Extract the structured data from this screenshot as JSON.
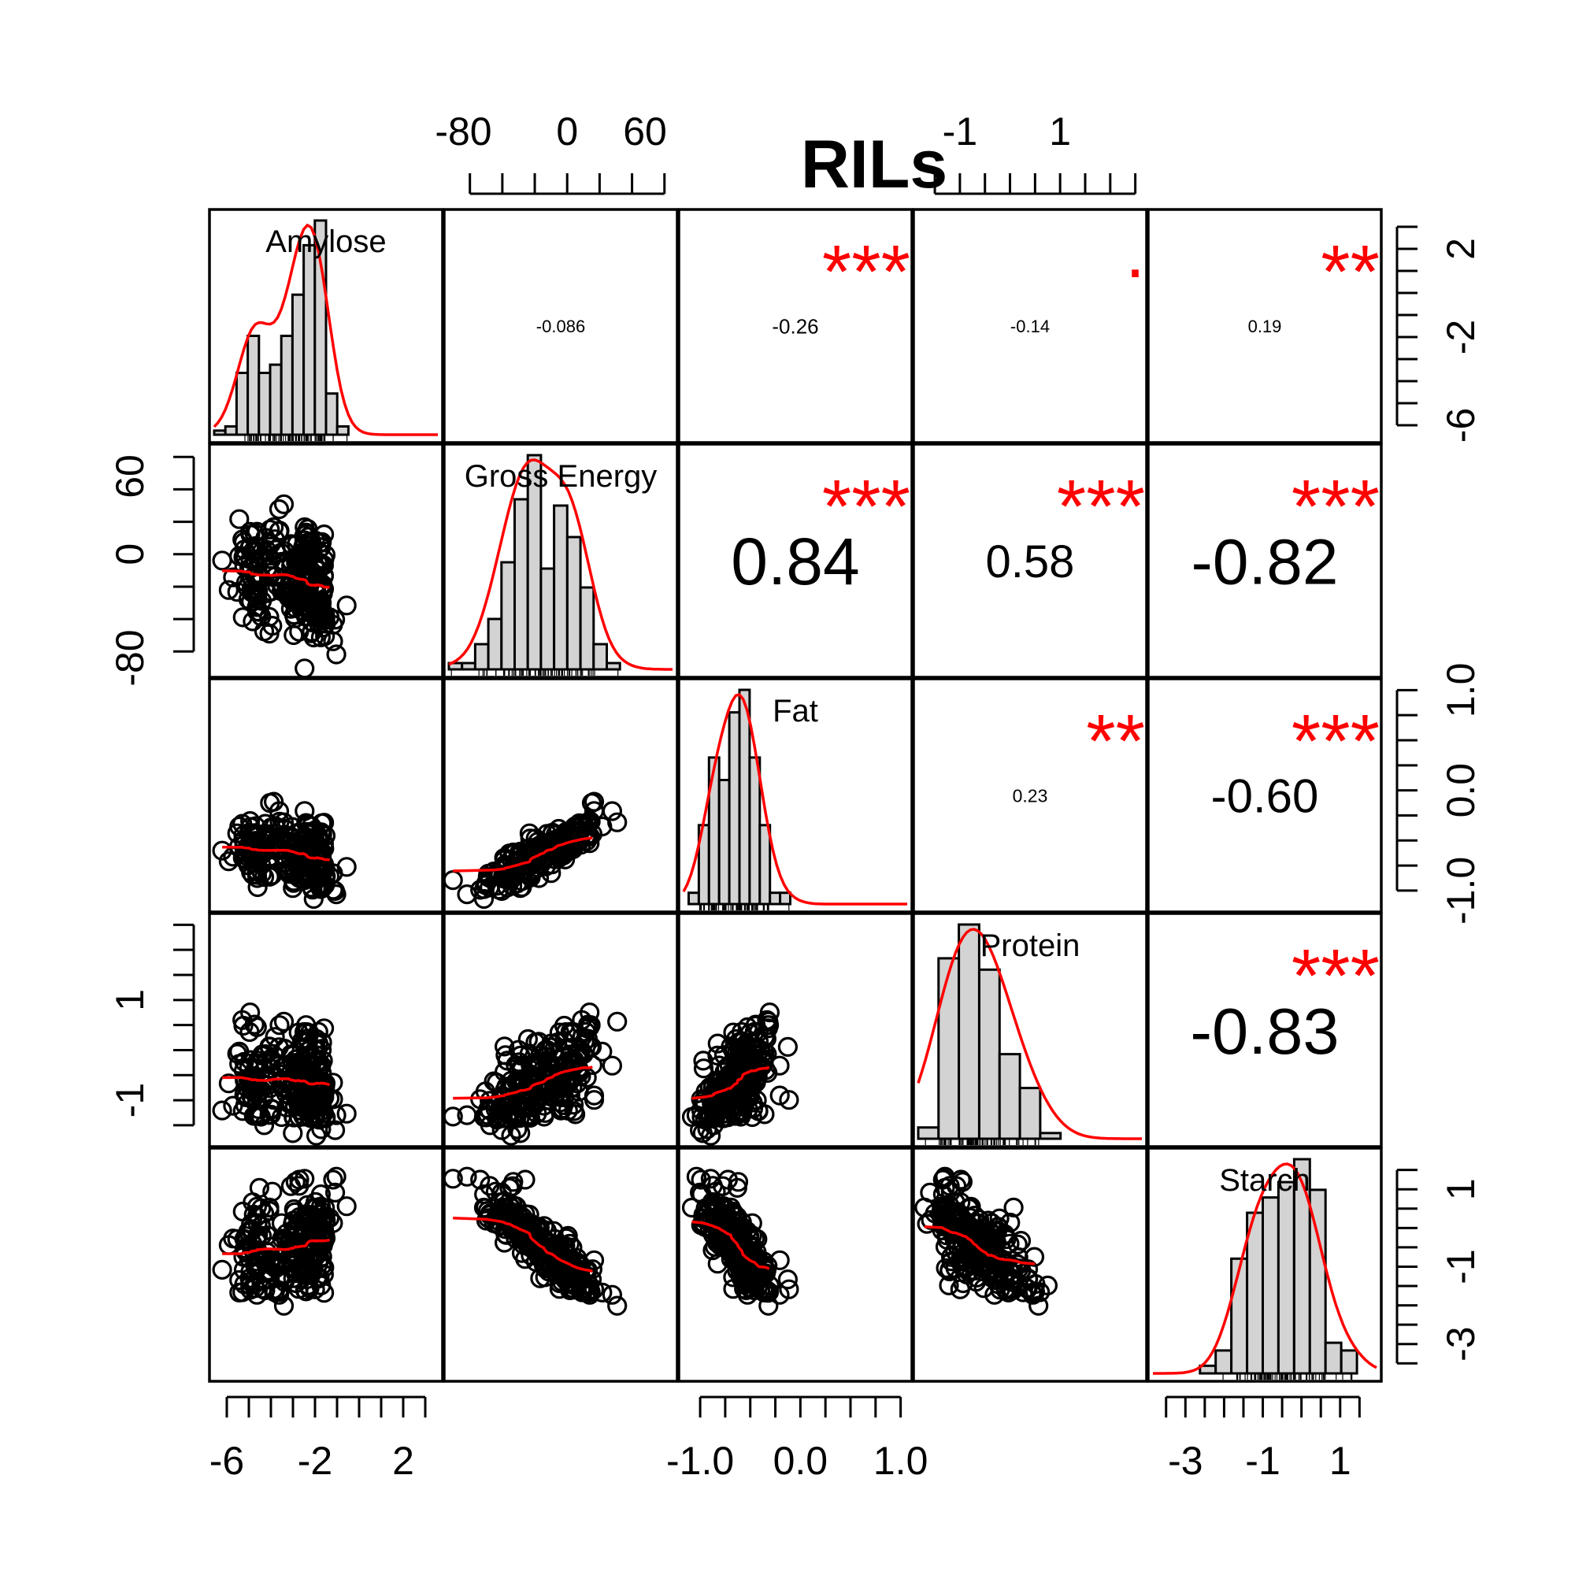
{
  "chart_data": {
    "type": "scatter-matrix",
    "title": "RILs",
    "variables": [
      "Amylose",
      "Gross Energy",
      "Fat",
      "Protein",
      "Starch"
    ],
    "axes": {
      "top": [
        {
          "panel": 1,
          "ticks": [
            "-80",
            "0",
            "60"
          ]
        },
        {
          "panel": 3,
          "ticks": [
            "-1",
            "1"
          ]
        }
      ],
      "bottom": [
        {
          "panel": 0,
          "ticks": [
            "-6",
            "-2",
            "2"
          ]
        },
        {
          "panel": 2,
          "ticks": [
            "-1.0",
            "0.0",
            "1.0"
          ]
        },
        {
          "panel": 4,
          "ticks": [
            "-3",
            "-1",
            "1"
          ]
        }
      ],
      "left": [
        {
          "panel": 1,
          "ticks": [
            "-80",
            "0",
            "60"
          ]
        },
        {
          "panel": 3,
          "ticks": [
            "-1",
            "1"
          ]
        }
      ],
      "right": [
        {
          "panel": 0,
          "ticks": [
            "-6",
            "-2",
            "2"
          ]
        },
        {
          "panel": 2,
          "ticks": [
            "-1.0",
            "0.0",
            "1.0"
          ]
        },
        {
          "panel": 4,
          "ticks": [
            "-3",
            "-1",
            "1"
          ]
        }
      ]
    },
    "ranges": {
      "Amylose": [
        -6.5,
        3.5
      ],
      "Gross Energy": [
        -90,
        80
      ],
      "Fat": [
        -1.15,
        1.05
      ],
      "Protein": [
        -1.8,
        2.6
      ],
      "Starch": [
        -3.8,
        1.9
      ]
    },
    "correlations": [
      {
        "row": 0,
        "col": 1,
        "r": "-0.086",
        "stars": ""
      },
      {
        "row": 0,
        "col": 2,
        "r": "-0.26",
        "stars": "***"
      },
      {
        "row": 0,
        "col": 3,
        "r": "-0.14",
        "stars": "."
      },
      {
        "row": 0,
        "col": 4,
        "r": "0.19",
        "stars": "**"
      },
      {
        "row": 1,
        "col": 2,
        "r": "0.84",
        "stars": "***"
      },
      {
        "row": 1,
        "col": 3,
        "r": "0.58",
        "stars": "***"
      },
      {
        "row": 1,
        "col": 4,
        "r": "-0.82",
        "stars": "***"
      },
      {
        "row": 2,
        "col": 3,
        "r": "0.23",
        "stars": "**"
      },
      {
        "row": 2,
        "col": 4,
        "r": "-0.60",
        "stars": "***"
      },
      {
        "row": 3,
        "col": 4,
        "r": "-0.83",
        "stars": "***"
      }
    ],
    "histograms": [
      {
        "variable": "Amylose",
        "start": -6.5,
        "width": 0.5,
        "counts": [
          1,
          2,
          15,
          24,
          15,
          17,
          24,
          34,
          46,
          52,
          10,
          2
        ]
      },
      {
        "variable": "Gross Energy",
        "start": -90,
        "width": 10,
        "counts": [
          1,
          1,
          4,
          8,
          17,
          27,
          34,
          16,
          26,
          21,
          13,
          4,
          1
        ]
      },
      {
        "variable": "Fat",
        "start": -1.1,
        "width": 0.1,
        "counts": [
          1,
          7,
          13,
          11,
          17,
          19,
          13,
          7,
          1,
          1,
          0
        ]
      },
      {
        "variable": "Protein",
        "start": -1.8,
        "width": 0.4,
        "counts": [
          2,
          32,
          38,
          30,
          15,
          9,
          1,
          0
        ]
      },
      {
        "variable": "Starch",
        "start": -3.8,
        "width": 0.4,
        "counts": [
          0,
          0,
          0,
          1,
          3,
          15,
          21,
          23,
          25,
          28,
          24,
          4,
          3
        ]
      }
    ],
    "colors": {
      "points": "#000000",
      "smooth": "#ff0000",
      "stars": "#ff0000",
      "bars": "#d3d3d3"
    }
  }
}
